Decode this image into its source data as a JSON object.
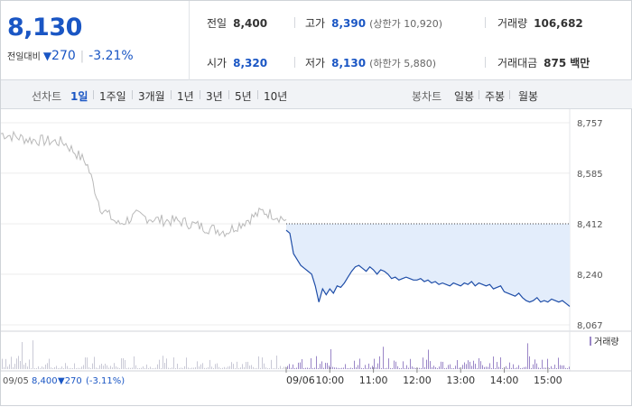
{
  "header": {
    "price": "8,130",
    "change_label": "전일대비",
    "change_arrow": "▼",
    "change_value": "270",
    "change_percent": "-3.21%",
    "stats": {
      "prev_close": {
        "label": "전일",
        "value": "8,400"
      },
      "high": {
        "label": "고가",
        "value": "8,390",
        "extra": "(상한가 10,920)"
      },
      "volume": {
        "label": "거래량",
        "value": "106,682"
      },
      "open": {
        "label": "시가",
        "value": "8,320"
      },
      "low": {
        "label": "저가",
        "value": "8,130",
        "extra": "(하한가 5,880)"
      },
      "trade_amount": {
        "label": "거래대금",
        "value": "875",
        "unit": "백만"
      }
    }
  },
  "toolbar": {
    "line_label": "선차트",
    "line_periods": [
      "1일",
      "1주일",
      "3개월",
      "1년",
      "3년",
      "5년",
      "10년"
    ],
    "active_period": "1일",
    "candle_label": "봉차트",
    "candle_periods": [
      "일봉",
      "주봉",
      "월봉"
    ]
  },
  "colors": {
    "accent": "#1a56c4",
    "today_line": "#1f4ea8",
    "today_fill": "#e3edfb",
    "prev_line": "#b9b9b9",
    "volume_bar": "#9a86c7"
  },
  "chart_data": {
    "type": "line",
    "y_ticks": [
      "8,757",
      "8,585",
      "8,412",
      "8,240",
      "8,067"
    ],
    "ylim": [
      8067,
      8757
    ],
    "reference_price": 8412,
    "x_ticks": [
      "09/06",
      "10:00",
      "11:00",
      "12:00",
      "13:00",
      "14:00",
      "15:00"
    ],
    "legend_volume": "거래량",
    "prev_day_footer": {
      "date": "09/05",
      "price": "8,400",
      "change": "▼270",
      "percent": "(-3.11%)"
    },
    "series": [
      {
        "x": [
          "09:00",
          "09:05",
          "09:10",
          "09:15",
          "09:20",
          "09:25",
          "09:30",
          "09:35",
          "09:40",
          "09:45",
          "09:50",
          "09:55",
          "10:00",
          "10:05",
          "10:10",
          "10:15",
          "10:20",
          "10:25",
          "10:30",
          "10:35",
          "10:40",
          "10:45",
          "10:50",
          "10:55",
          "11:00",
          "11:05",
          "11:10",
          "11:15",
          "11:20",
          "11:25",
          "11:30",
          "11:35",
          "11:40",
          "11:45",
          "11:50",
          "11:55",
          "12:00",
          "12:05",
          "12:10",
          "12:15",
          "12:20",
          "12:25",
          "12:30",
          "12:35",
          "12:40",
          "12:45",
          "12:50",
          "12:55",
          "13:00",
          "13:05",
          "13:10",
          "13:15",
          "13:20",
          "13:25",
          "13:30",
          "13:35",
          "13:40",
          "13:45",
          "13:50",
          "13:55",
          "14:00",
          "14:05",
          "14:10",
          "14:15",
          "14:20",
          "14:25",
          "14:30",
          "14:35",
          "14:40",
          "14:45",
          "14:50",
          "14:55",
          "15:00",
          "15:05",
          "15:10",
          "15:15",
          "15:20",
          "15:25",
          "15:30"
        ],
        "values": [
          8390,
          8380,
          8310,
          8290,
          8270,
          8260,
          8250,
          8240,
          8200,
          8145,
          8190,
          8170,
          8190,
          8175,
          8200,
          8195,
          8210,
          8230,
          8250,
          8265,
          8270,
          8260,
          8250,
          8265,
          8255,
          8240,
          8255,
          8250,
          8240,
          8225,
          8230,
          8220,
          8225,
          8230,
          8225,
          8220,
          8220,
          8225,
          8215,
          8220,
          8210,
          8215,
          8205,
          8210,
          8205,
          8200,
          8210,
          8205,
          8200,
          8210,
          8205,
          8215,
          8200,
          8210,
          8205,
          8200,
          8205,
          8190,
          8195,
          8200,
          8180,
          8175,
          8170,
          8165,
          8175,
          8160,
          8150,
          8145,
          8150,
          8160,
          8145,
          8150,
          8145,
          8155,
          8150,
          8145,
          8150,
          8140,
          8130
        ]
      }
    ]
  }
}
